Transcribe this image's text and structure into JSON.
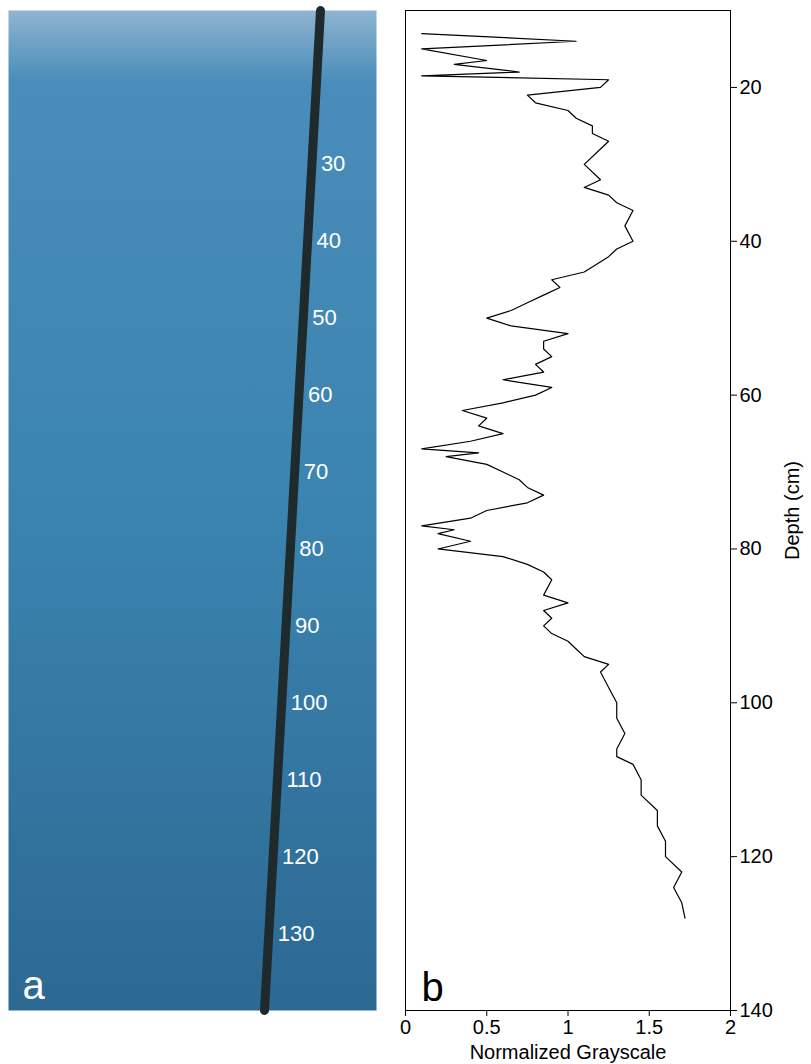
{
  "chart_data": [
    {
      "type": "photo",
      "panel_label": "a",
      "depth_labels": [
        30,
        40,
        50,
        60,
        70,
        80,
        90,
        100,
        110,
        120,
        130
      ]
    },
    {
      "type": "line",
      "panel_label": "b",
      "xlabel": "Normalized Grayscale",
      "ylabel": "Depth (cm)",
      "color": "#000000",
      "xlim": [
        0,
        2
      ],
      "xticks": [
        0,
        0.5,
        1,
        1.5,
        2
      ],
      "ylim": [
        140,
        10
      ],
      "yticks": [
        20,
        40,
        60,
        80,
        100,
        120,
        140
      ],
      "x": [
        0.1,
        1.05,
        0.1,
        0.5,
        0.3,
        0.7,
        0.1,
        1.25,
        1.2,
        0.75,
        0.8,
        1.0,
        1.05,
        1.15,
        1.15,
        1.25,
        1.2,
        1.1,
        1.2,
        1.1,
        1.25,
        1.3,
        1.4,
        1.35,
        1.4,
        1.3,
        1.25,
        1.1,
        0.9,
        0.95,
        0.85,
        0.75,
        0.65,
        0.5,
        0.65,
        1.0,
        0.85,
        0.85,
        0.9,
        0.8,
        0.85,
        0.6,
        0.9,
        0.8,
        0.6,
        0.35,
        0.5,
        0.45,
        0.6,
        0.4,
        0.1,
        0.45,
        0.25,
        0.5,
        0.6,
        0.7,
        0.75,
        0.85,
        0.75,
        0.5,
        0.4,
        0.1,
        0.3,
        0.2,
        0.4,
        0.2,
        0.6,
        0.75,
        0.85,
        0.9,
        0.85,
        1.0,
        0.85,
        0.9,
        0.85,
        0.9,
        1.0,
        1.05,
        1.1,
        1.25,
        1.2,
        1.25,
        1.3,
        1.3,
        1.35,
        1.3,
        1.3,
        1.4,
        1.45,
        1.45,
        1.55,
        1.55,
        1.6,
        1.6,
        1.7,
        1.65,
        1.7,
        1.72
      ],
      "y": [
        13,
        14,
        15,
        16.5,
        17,
        18,
        18.5,
        19,
        20,
        21,
        22,
        23,
        24,
        25,
        26,
        27,
        28,
        30,
        32,
        33,
        34,
        35,
        36,
        38,
        40,
        41,
        42,
        44,
        45,
        46,
        47,
        48,
        49,
        50,
        51,
        52,
        53,
        54,
        55,
        56,
        57,
        58,
        59,
        60,
        61,
        62,
        63,
        64,
        65,
        66,
        67,
        67.5,
        68,
        69,
        70,
        71,
        72,
        73,
        74,
        75,
        76,
        77,
        77.5,
        78,
        79,
        80,
        81,
        82,
        83,
        84,
        86,
        87,
        88,
        89,
        90,
        91,
        92,
        93,
        94,
        95,
        96,
        98,
        100,
        102,
        104,
        106,
        107,
        108,
        110,
        112,
        114,
        116,
        118,
        120,
        122,
        124,
        126,
        128
      ]
    }
  ]
}
